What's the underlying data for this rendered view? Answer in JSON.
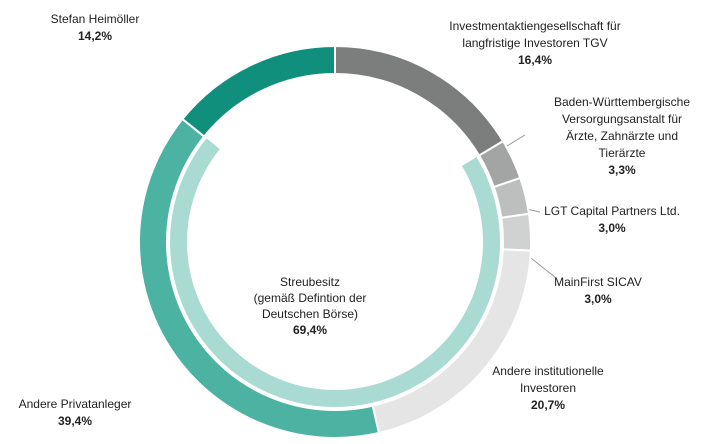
{
  "chart_data": {
    "type": "pie",
    "categories": [
      "Investmentaktiengesellschaft  für\nlangfristige Investoren  TGV",
      "Baden-Württembergische\nVersorgungsanstalt  für\nÄrzte, Zahnärzte  und\nTierärzte",
      "LGT Capital Partners Ltd.",
      "MainFirst SICAV",
      "Andere institutionelle\nInvestoren",
      "Andere Privatanleger",
      "Stefan Heimöller"
    ],
    "values": [
      16.4,
      3.3,
      3.0,
      3.0,
      20.7,
      39.4,
      14.2
    ],
    "value_labels": [
      "16,4%",
      "3,3%",
      "3,0%",
      "3,0%",
      "20,7%",
      "39,4%",
      "14,2%"
    ],
    "colors": [
      "#7b7e7c",
      "#a3a5a4",
      "#bdbfbe",
      "#d0d2d1",
      "#e4e5e4",
      "#4cb2a1",
      "#108f7d"
    ],
    "inner": {
      "name": "Streubesitz\n(gemäß Defintion der\nDeutschen Börse)",
      "value": 69.4,
      "value_label": "69,4%",
      "color": "#a9dbd3",
      "start_after": 1
    }
  }
}
